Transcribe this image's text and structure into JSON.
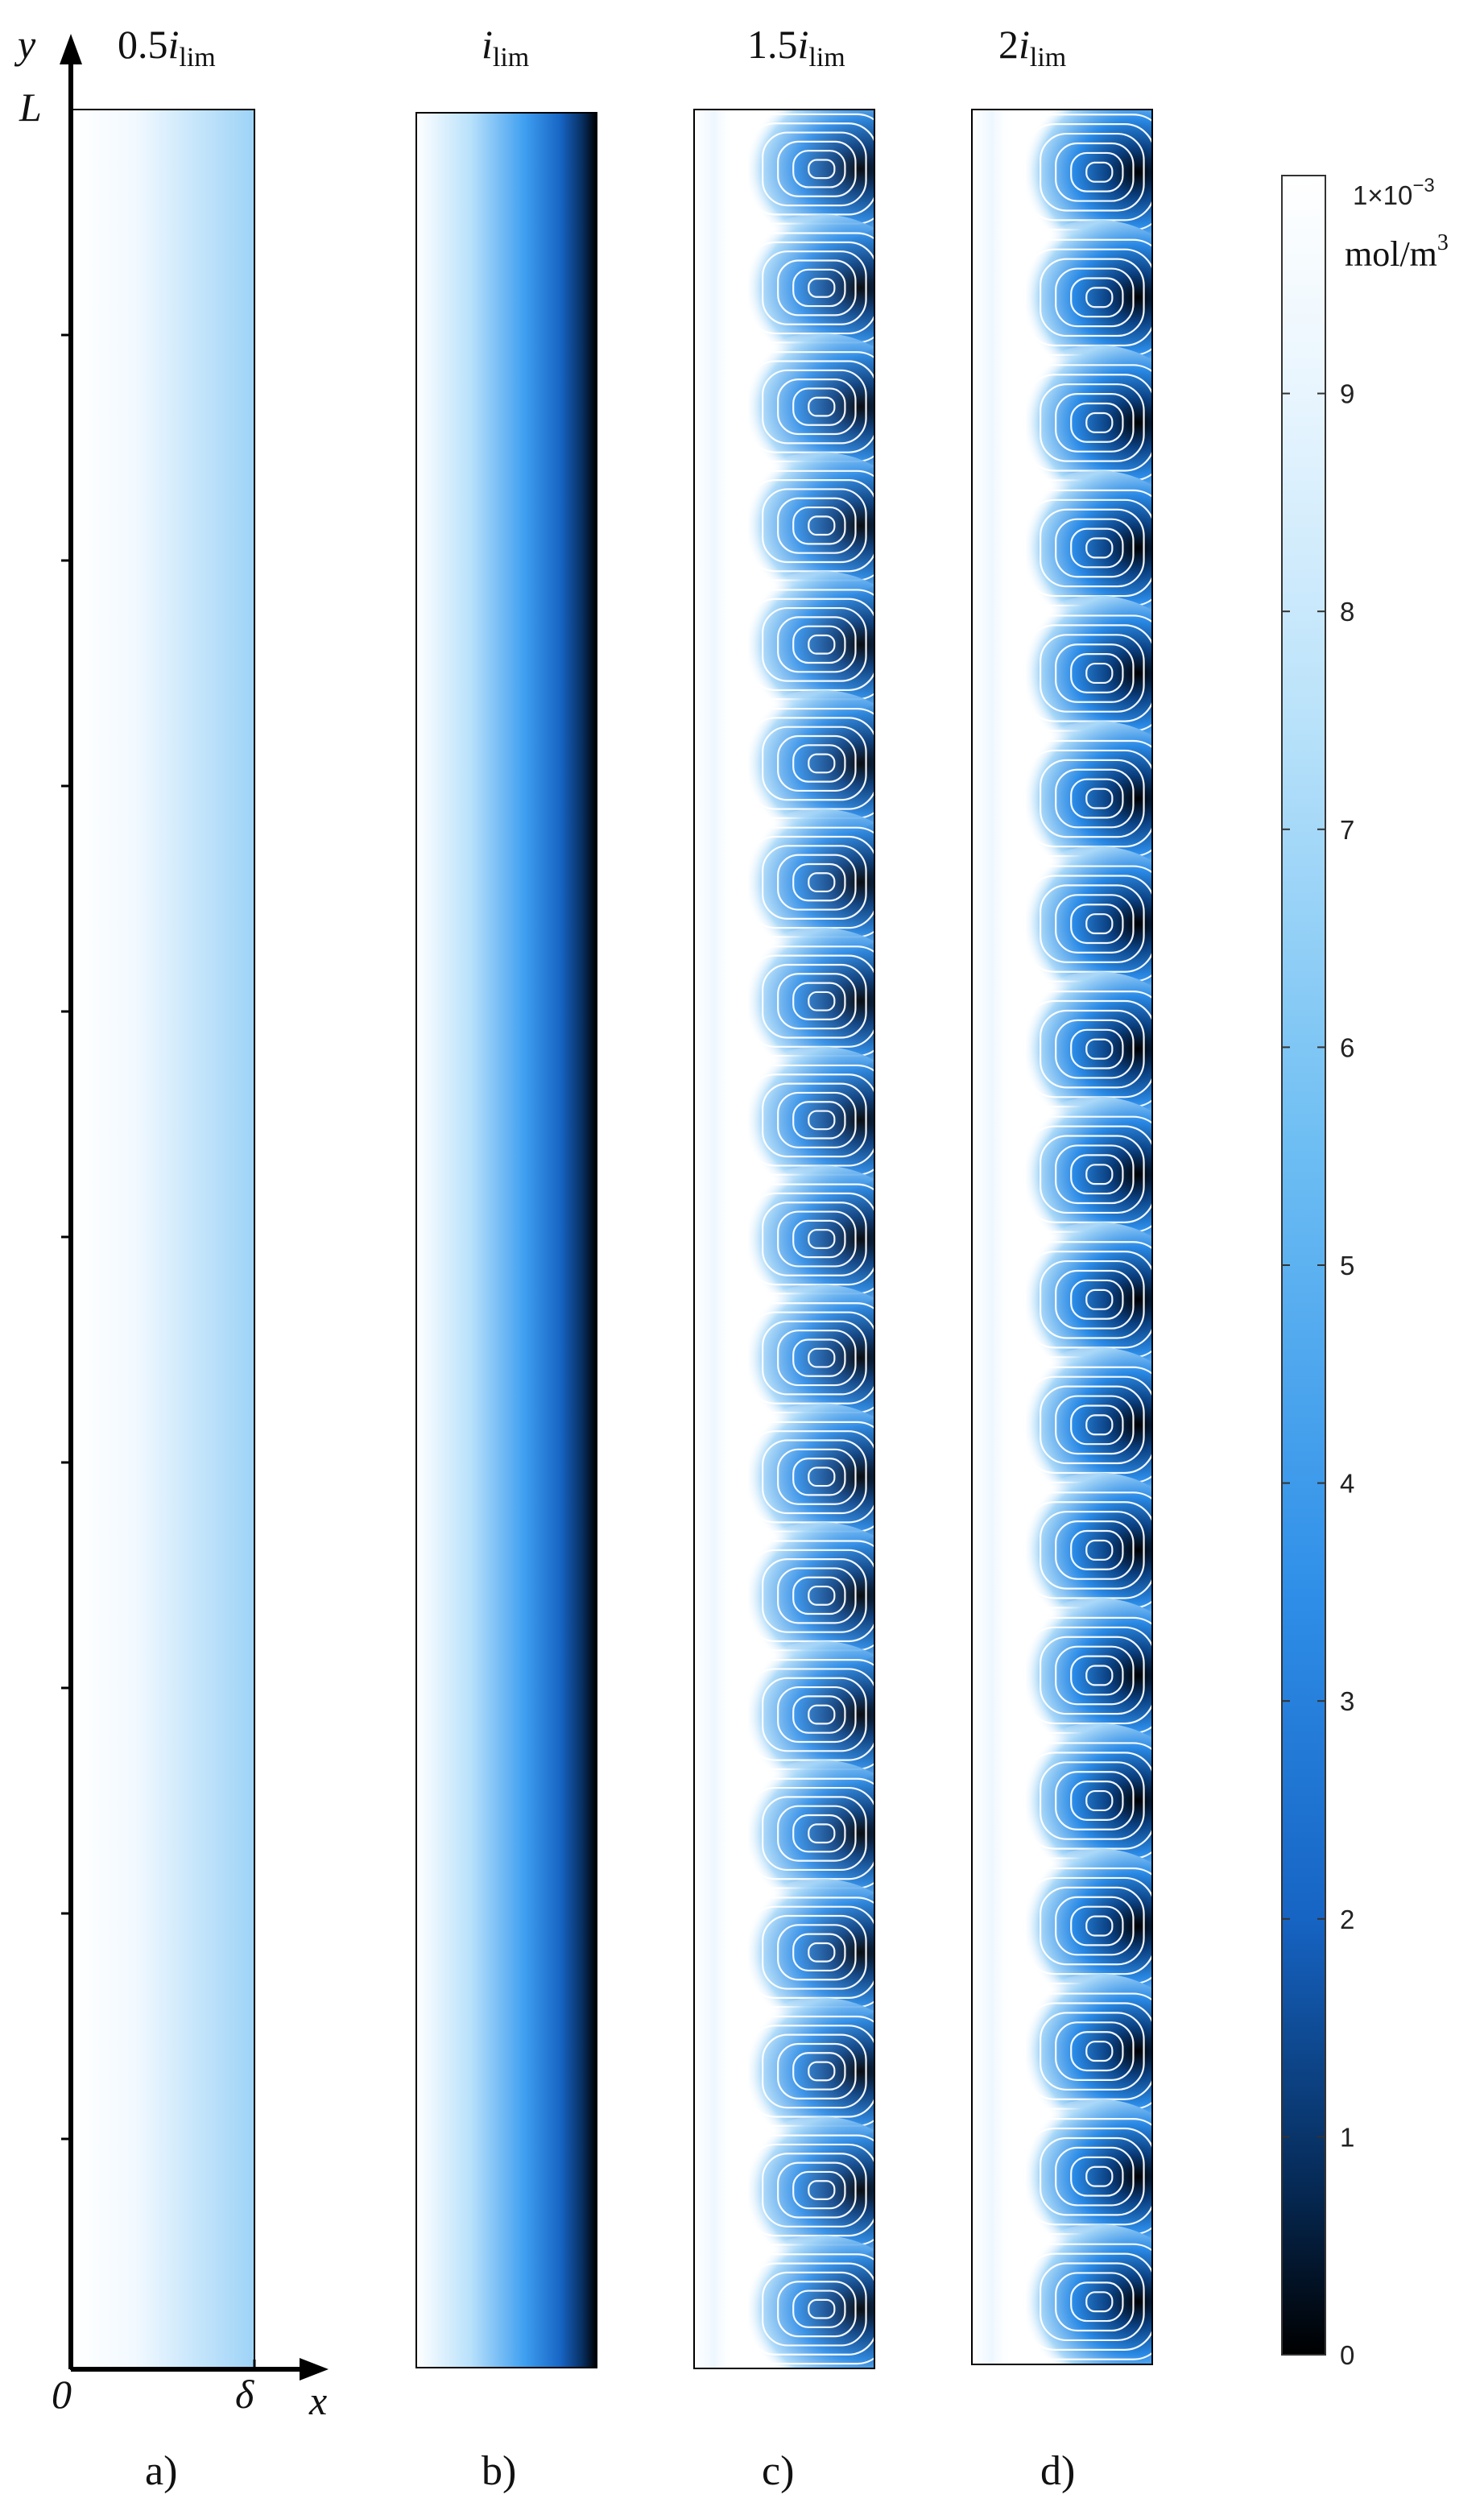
{
  "axes": {
    "y_label": "y",
    "x_label": "x",
    "origin_label": "0",
    "y_top_label": "L",
    "x_end_label": "δ"
  },
  "panels": [
    {
      "id": "a",
      "title_prefix": "0.5",
      "title_var": "i",
      "title_sub": "lim",
      "letter": "a)",
      "mode": "linear",
      "cmin": 0.62
    },
    {
      "id": "b",
      "title_prefix": "",
      "title_var": "i",
      "title_sub": "lim",
      "letter": "b)",
      "mode": "linear",
      "cmin": 0.0
    },
    {
      "id": "c",
      "title_prefix": "1.5",
      "title_var": "i",
      "title_sub": "lim",
      "letter": "c)",
      "mode": "vortex",
      "vortex_count": 19,
      "depletion": 0.6
    },
    {
      "id": "d",
      "title_prefix": "2",
      "title_var": "i",
      "title_sub": "lim",
      "letter": "d)",
      "mode": "vortex",
      "vortex_count": 18,
      "depletion": 1.0
    }
  ],
  "colorbar": {
    "exponent_label": "1×10",
    "exponent_power": "−3",
    "unit_label": "mol/m",
    "unit_power": "3",
    "ticks": [
      "0",
      "1",
      "2",
      "3",
      "4",
      "5",
      "6",
      "7",
      "8",
      "9"
    ],
    "min": 0,
    "max": 10
  },
  "colors": {
    "high": "#ffffff",
    "mid": "#2f8fe8",
    "low": "#000000",
    "streamline": "#ffffff",
    "axis": "#000000"
  }
}
